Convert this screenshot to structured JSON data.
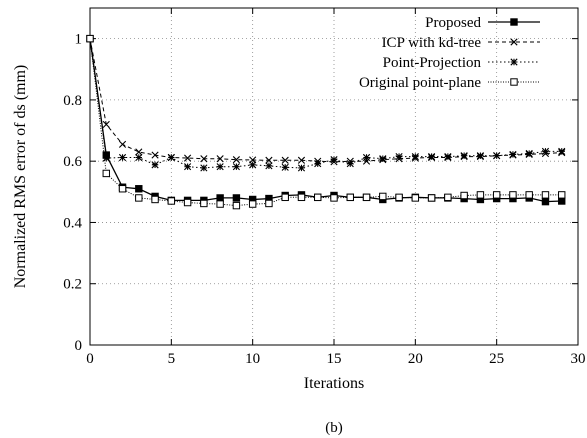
{
  "chart_data": {
    "type": "line",
    "title": "",
    "caption": "(b)",
    "xlabel": "Iterations",
    "ylabel": "Normalized RMS error of ds (mm)",
    "xlim": [
      0,
      30
    ],
    "ylim": [
      0,
      1.1
    ],
    "xticks": [
      0,
      5,
      10,
      15,
      20,
      25,
      30
    ],
    "yticks": [
      0,
      0.2,
      0.4,
      0.6,
      0.8,
      1
    ],
    "grid": true,
    "legend_position": "top-right",
    "x": [
      0,
      1,
      2,
      3,
      4,
      5,
      6,
      7,
      8,
      9,
      10,
      11,
      12,
      13,
      14,
      15,
      16,
      17,
      18,
      19,
      20,
      21,
      22,
      23,
      24,
      25,
      26,
      27,
      28,
      29
    ],
    "series": [
      {
        "name": "Proposed",
        "style": "solid",
        "marker": "filled-square",
        "values": [
          1.0,
          0.62,
          0.515,
          0.51,
          0.485,
          0.472,
          0.472,
          0.472,
          0.48,
          0.48,
          0.475,
          0.478,
          0.488,
          0.49,
          0.482,
          0.488,
          0.482,
          0.482,
          0.475,
          0.48,
          0.482,
          0.48,
          0.48,
          0.478,
          0.475,
          0.478,
          0.478,
          0.48,
          0.468,
          0.47
        ]
      },
      {
        "name": "ICP with kd-tree",
        "style": "dashed",
        "marker": "x",
        "values": [
          1.0,
          0.72,
          0.655,
          0.63,
          0.62,
          0.612,
          0.61,
          0.608,
          0.608,
          0.605,
          0.604,
          0.603,
          0.603,
          0.603,
          0.6,
          0.598,
          0.6,
          0.6,
          0.605,
          0.608,
          0.61,
          0.612,
          0.612,
          0.615,
          0.615,
          0.618,
          0.62,
          0.622,
          0.625,
          0.628
        ]
      },
      {
        "name": "Point-Projection",
        "style": "dotted",
        "marker": "star",
        "values": [
          1.0,
          0.61,
          0.612,
          0.612,
          0.588,
          0.612,
          0.582,
          0.578,
          0.582,
          0.582,
          0.588,
          0.585,
          0.58,
          0.578,
          0.592,
          0.605,
          0.592,
          0.612,
          0.608,
          0.615,
          0.615,
          0.615,
          0.615,
          0.618,
          0.618,
          0.618,
          0.622,
          0.625,
          0.632,
          0.632
        ]
      },
      {
        "name": "Original point-plane",
        "style": "dotted-fine",
        "marker": "open-square",
        "values": [
          1.0,
          0.56,
          0.51,
          0.48,
          0.475,
          0.47,
          0.465,
          0.462,
          0.46,
          0.455,
          0.46,
          0.462,
          0.482,
          0.482,
          0.482,
          0.48,
          0.482,
          0.482,
          0.485,
          0.482,
          0.48,
          0.48,
          0.482,
          0.488,
          0.49,
          0.49,
          0.49,
          0.49,
          0.49,
          0.49
        ]
      }
    ]
  }
}
